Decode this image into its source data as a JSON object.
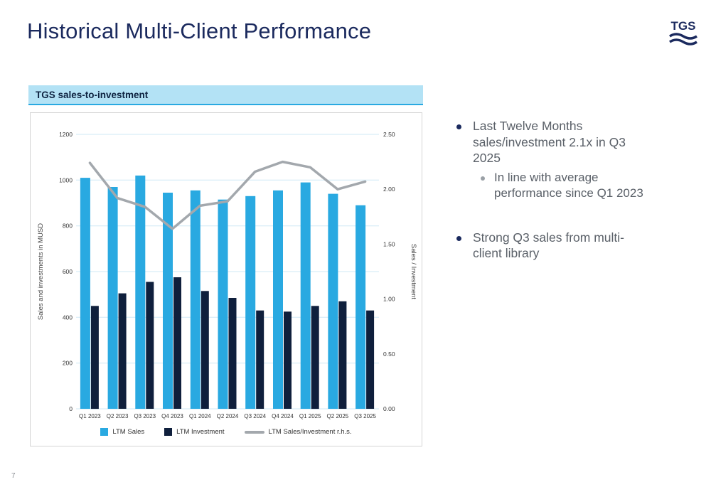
{
  "slide": {
    "title": "Historical Multi-Client Performance",
    "page_number": "7",
    "logo_text": "TGS"
  },
  "chart_panel": {
    "header": "TGS sales-to-investment"
  },
  "chart_data": {
    "type": "bar",
    "subtype": "grouped-bars-with-line-overlay",
    "categories": [
      "Q1 2023",
      "Q2 2023",
      "Q3 2023",
      "Q4 2023",
      "Q1 2024",
      "Q2 2024",
      "Q3 2024",
      "Q4 2024",
      "Q1 2025",
      "Q2 2025",
      "Q3 2025"
    ],
    "series": [
      {
        "name": "LTM Sales",
        "type": "bar",
        "axis": "left",
        "color": "#29a9e1",
        "values": [
          1010,
          970,
          1020,
          945,
          955,
          915,
          930,
          955,
          990,
          940,
          890
        ]
      },
      {
        "name": "LTM Investment",
        "type": "bar",
        "axis": "left",
        "color": "#0f1f3c",
        "values": [
          450,
          505,
          555,
          575,
          515,
          485,
          430,
          425,
          450,
          470,
          430
        ]
      },
      {
        "name": "LTM Sales/Investment r.h.s.",
        "type": "line",
        "axis": "right",
        "color": "#a3a8ad",
        "values": [
          2.24,
          1.92,
          1.84,
          1.64,
          1.85,
          1.89,
          2.16,
          2.25,
          2.2,
          2.0,
          2.07
        ]
      }
    ],
    "left_axis": {
      "title": "Sales and investments in MUSD",
      "min": 0,
      "max": 1200,
      "step": 200
    },
    "right_axis": {
      "title": "Sales / Investment",
      "min": 0,
      "max": 2.5,
      "step": 0.5
    },
    "grid": true,
    "legend_position": "bottom",
    "grid_color": "#cfe8f5"
  },
  "bullets": [
    {
      "text": "Last Twelve Months sales/investment 2.1x in Q3 2025",
      "sub": [
        "In line with average performance since Q1 2023"
      ]
    },
    {
      "text": "Strong Q3 sales from multi-client library",
      "sub": []
    }
  ]
}
